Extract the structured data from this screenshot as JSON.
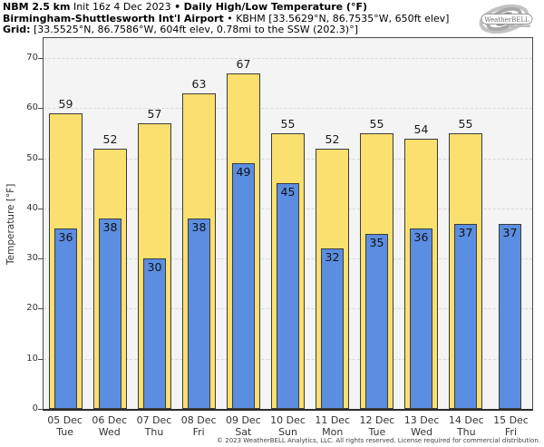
{
  "header": {
    "line1": {
      "model": "NBM 2.5 km",
      "init": "Init 16z 4 Dec 2023",
      "sep": "•",
      "product": "Daily High/Low Temperature (°F)"
    },
    "line2": {
      "station_name": "Birmingham-Shuttlesworth Int'l Airport",
      "sep": "•",
      "station_info": "KBHM [33.5629°N, 86.7535°W, 650ft elev]"
    },
    "line3": {
      "label": "Grid:",
      "info": "[33.5525°N, 86.7586°W, 604ft elev, 0.78mi to the SSW (202.3)°]"
    }
  },
  "logo": {
    "brand": "WeatherBELL"
  },
  "chart_data": {
    "type": "bar",
    "title": "Daily High/Low Temperature (°F)",
    "ylabel": "Temperature [°F]",
    "ylim": [
      0,
      74
    ],
    "yticks": [
      0,
      10,
      20,
      30,
      40,
      50,
      60,
      70
    ],
    "grid": "horizontal-dashed",
    "legend_position": "none",
    "categories": [
      {
        "date": "05 Dec",
        "day": "Tue"
      },
      {
        "date": "06 Dec",
        "day": "Wed"
      },
      {
        "date": "07 Dec",
        "day": "Thu"
      },
      {
        "date": "08 Dec",
        "day": "Fri"
      },
      {
        "date": "09 Dec",
        "day": "Sat"
      },
      {
        "date": "10 Dec",
        "day": "Sun"
      },
      {
        "date": "11 Dec",
        "day": "Mon"
      },
      {
        "date": "12 Dec",
        "day": "Tue"
      },
      {
        "date": "13 Dec",
        "day": "Wed"
      },
      {
        "date": "14 Dec",
        "day": "Thu"
      },
      {
        "date": "15 Dec",
        "day": "Fri"
      }
    ],
    "series": [
      {
        "name": "High",
        "color": "#fae06e",
        "values": [
          59,
          52,
          57,
          63,
          67,
          55,
          52,
          55,
          54,
          55,
          null
        ]
      },
      {
        "name": "Low",
        "color": "#5b8de1",
        "values": [
          36,
          38,
          30,
          38,
          49,
          45,
          32,
          35,
          36,
          37,
          37
        ]
      }
    ]
  },
  "colors": {
    "high_bar": "#fae06e",
    "low_bar": "#5b8de1",
    "bar_edge": "#3c3c3c",
    "plot_bg": "#f4f4f4",
    "grid_line": "#d9d9d9"
  },
  "footer": {
    "copyright": "© 2023 WeatherBELL Analytics, LLC. All rights reserved. License required for commercial distribution."
  }
}
